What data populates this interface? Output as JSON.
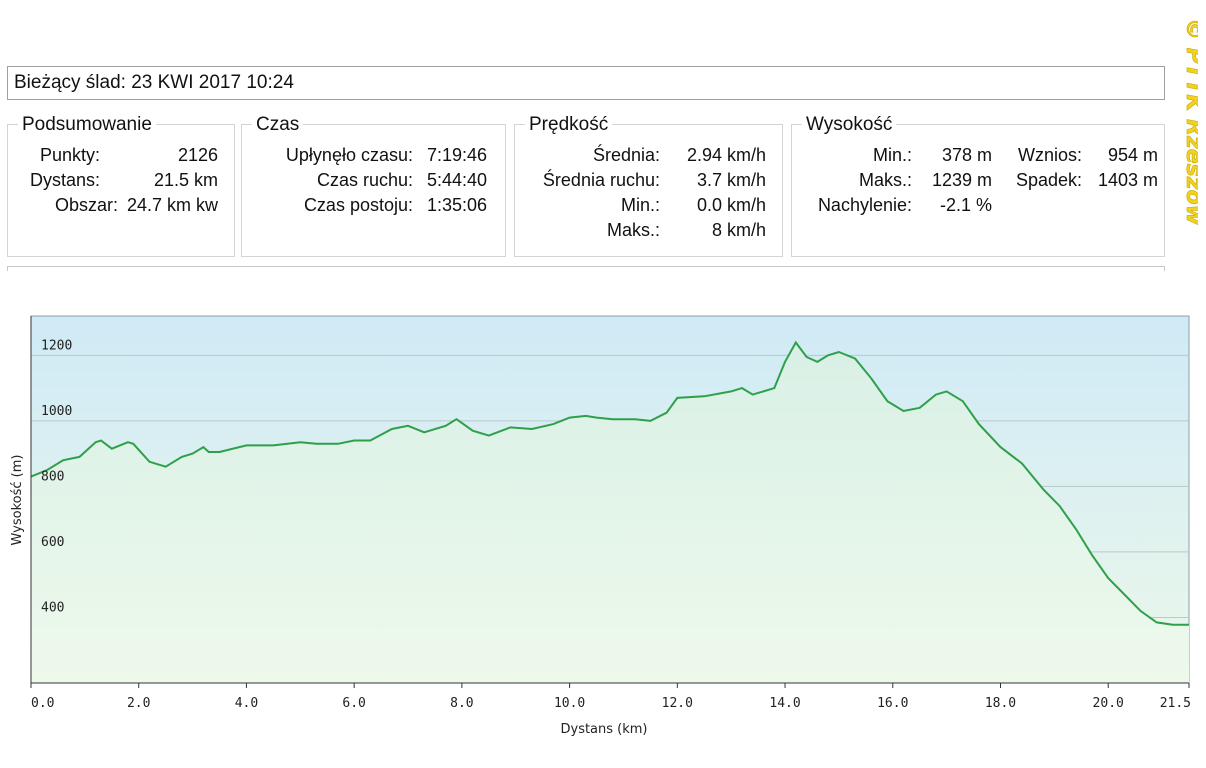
{
  "header": {
    "track_label": "Bieżący ślad: 23 KWI 2017 10:24"
  },
  "summary": {
    "title": "Podsumowanie",
    "points_label": "Punkty:",
    "points_value": "2126",
    "distance_label": "Dystans:",
    "distance_value": "21.5 km",
    "area_label": "Obszar:",
    "area_value": "24.7 km kw"
  },
  "time": {
    "title": "Czas",
    "elapsed_label": "Upłynęło czasu:",
    "elapsed_value": "7:19:46",
    "moving_label": "Czas ruchu:",
    "moving_value": "5:44:40",
    "stopped_label": "Czas postoju:",
    "stopped_value": "1:35:06"
  },
  "speed": {
    "title": "Prędkość",
    "avg_label": "Średnia:",
    "avg_value": "2.94 km/h",
    "avg_moving_label": "Średnia ruchu:",
    "avg_moving_value": "3.7 km/h",
    "min_label": "Min.:",
    "min_value": "0.0 km/h",
    "max_label": "Maks.:",
    "max_value": "8 km/h"
  },
  "elevation": {
    "title": "Wysokość",
    "min_label": "Min.:",
    "min_value": "378 m",
    "max_label": "Maks.:",
    "max_value": "1239 m",
    "slope_label": "Nachylenie:",
    "slope_value": "-2.1 %",
    "ascent_label": "Wznios:",
    "ascent_value": "954 m",
    "descent_label": "Spadek:",
    "descent_value": "1403 m"
  },
  "watermark_text": "© PTTK Rzeszów",
  "colors": {
    "line": "#2ea04a",
    "fill_top": "#cfeaf6",
    "fill_bottom": "#ecf8ea",
    "watermark": "#f2d21e"
  },
  "chart_data": {
    "type": "area",
    "xlabel": "Dystans  (km)",
    "ylabel": "Wysokość (m)",
    "xlim": [
      0,
      21.5
    ],
    "ylim": [
      200,
      1320
    ],
    "x_ticks": [
      "0.0",
      "2.0",
      "4.0",
      "6.0",
      "8.0",
      "10.0",
      "12.0",
      "14.0",
      "16.0",
      "18.0",
      "20.0",
      "21.5"
    ],
    "y_ticks": [
      "400",
      "600",
      "800",
      "1000",
      "1200"
    ],
    "grid": true,
    "series": [
      {
        "x": [
          0,
          0.3,
          0.6,
          0.9,
          1.2,
          1.3,
          1.5,
          1.8,
          1.9,
          2.2,
          2.5,
          2.8,
          3.0,
          3.2,
          3.3,
          3.5,
          4.0,
          4.5,
          5.0,
          5.3,
          5.7,
          6.0,
          6.3,
          6.7,
          7.0,
          7.3,
          7.7,
          7.9,
          8.2,
          8.5,
          8.9,
          9.3,
          9.7,
          10.0,
          10.3,
          10.5,
          10.8,
          11.2,
          11.5,
          11.8,
          12.0,
          12.5,
          13.0,
          13.2,
          13.4,
          13.8,
          14.0,
          14.2,
          14.4,
          14.6,
          14.8,
          15.0,
          15.3,
          15.6,
          15.9,
          16.2,
          16.5,
          16.8,
          17.0,
          17.3,
          17.6,
          18.0,
          18.4,
          18.8,
          19.1,
          19.4,
          19.7,
          20.0,
          20.3,
          20.6,
          20.9,
          21.2,
          21.5
        ],
        "y": [
          830,
          850,
          880,
          890,
          935,
          940,
          915,
          935,
          930,
          875,
          860,
          890,
          900,
          920,
          905,
          905,
          925,
          925,
          935,
          930,
          930,
          940,
          940,
          975,
          985,
          965,
          985,
          1005,
          970,
          955,
          980,
          975,
          990,
          1010,
          1015,
          1010,
          1005,
          1005,
          1000,
          1025,
          1070,
          1075,
          1090,
          1100,
          1080,
          1100,
          1180,
          1239,
          1195,
          1180,
          1200,
          1210,
          1190,
          1130,
          1060,
          1030,
          1040,
          1080,
          1090,
          1060,
          990,
          920,
          870,
          790,
          740,
          670,
          590,
          520,
          470,
          420,
          385,
          378,
          378
        ]
      }
    ]
  }
}
